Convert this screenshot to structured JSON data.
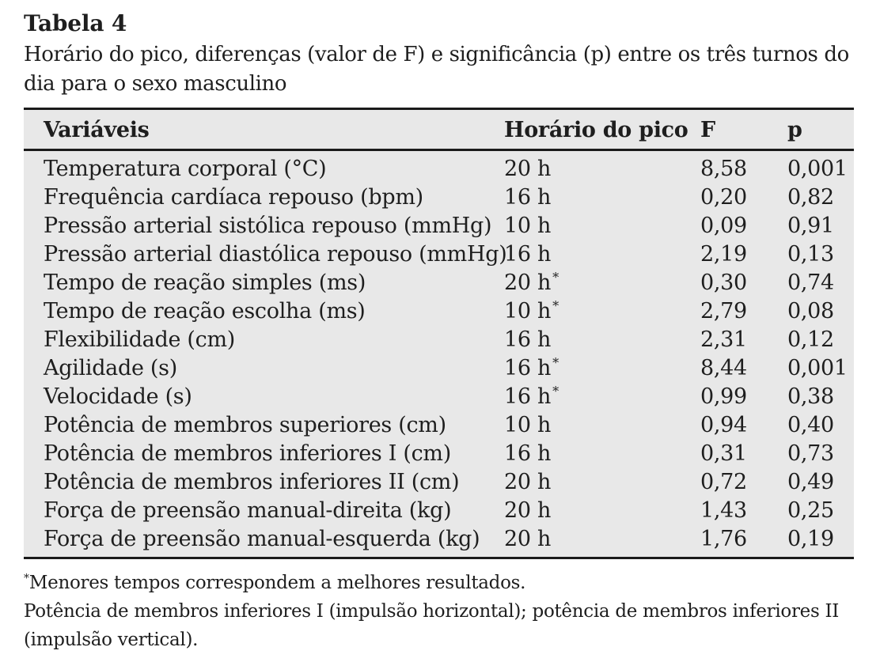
{
  "colors": {
    "table_bg": "#e8e8e8",
    "rule_color": "#1a1a1a",
    "text_color": "#1e1e1e"
  },
  "table": {
    "label": "Tabela 4",
    "caption": "Horário do pico, diferenças (valor de F) e significância (p) entre os três turnos do dia para o sexo masculino",
    "columns": [
      "Variáveis",
      "Horário do pico",
      "F",
      "p"
    ],
    "rows": [
      {
        "variavel": "Temperatura corporal (°C)",
        "horario": "20 h",
        "star": "",
        "f": "8,58",
        "p": "0,001"
      },
      {
        "variavel": "Frequência cardíaca repouso (bpm)",
        "horario": "16 h",
        "star": "",
        "f": "0,20",
        "p": "0,82"
      },
      {
        "variavel": "Pressão arterial sistólica repouso (mmHg)",
        "horario": "10 h",
        "star": "",
        "f": "0,09",
        "p": "0,91"
      },
      {
        "variavel": "Pressão arterial diastólica repouso (mmHg)",
        "horario": "16 h",
        "star": "",
        "f": "2,19",
        "p": "0,13"
      },
      {
        "variavel": "Tempo de reação simples (ms)",
        "horario": "20 h",
        "star": "*",
        "f": "0,30",
        "p": "0,74"
      },
      {
        "variavel": "Tempo de reação escolha (ms)",
        "horario": "10 h",
        "star": "*",
        "f": "2,79",
        "p": "0,08"
      },
      {
        "variavel": "Flexibilidade (cm)",
        "horario": "16 h",
        "star": "",
        "f": "2,31",
        "p": "0,12"
      },
      {
        "variavel": "Agilidade (s)",
        "horario": "16 h",
        "star": "*",
        "f": "8,44",
        "p": "0,001"
      },
      {
        "variavel": "Velocidade (s)",
        "horario": "16 h",
        "star": "*",
        "f": "0,99",
        "p": "0,38"
      },
      {
        "variavel": "Potência de membros superiores (cm)",
        "horario": "10 h",
        "star": "",
        "f": "0,94",
        "p": "0,40"
      },
      {
        "variavel": "Potência de membros inferiores I (cm)",
        "horario": "16 h",
        "star": "",
        "f": "0,31",
        "p": "0,73"
      },
      {
        "variavel": "Potência de membros inferiores II (cm)",
        "horario": "20 h",
        "star": "",
        "f": "0,72",
        "p": "0,49"
      },
      {
        "variavel": "Força de preensão manual-direita (kg)",
        "horario": "20 h",
        "star": "",
        "f": "1,43",
        "p": "0,25"
      },
      {
        "variavel": "Força de preensão manual-esquerda (kg)",
        "horario": "20 h",
        "star": "",
        "f": "1,76",
        "p": "0,19"
      }
    ],
    "footnotes": [
      {
        "star": "*",
        "text": "Menores tempos correspondem a melhores resultados."
      },
      "Potência de membros inferiores I (impulsão horizontal); potência de membros inferiores II (impulsão vertical)."
    ]
  }
}
